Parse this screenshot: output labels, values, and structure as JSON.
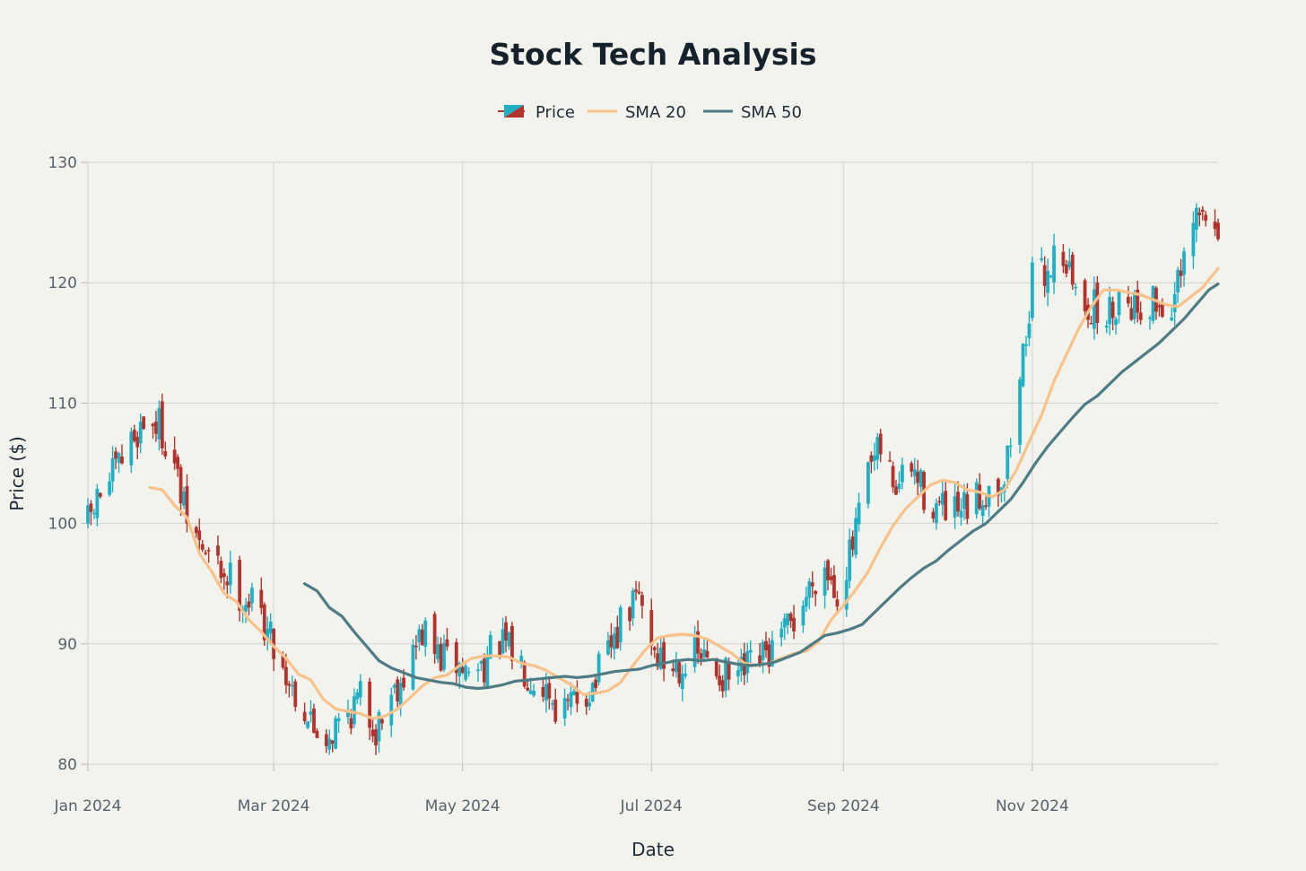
{
  "chart_data": {
    "type": "candlestick",
    "title": "Stock Tech Analysis",
    "xlabel": "Date",
    "ylabel": "Price ($)",
    "ylim": [
      80,
      130
    ],
    "xlim": [
      "2024-01-01",
      "2024-12-31"
    ],
    "grid": true,
    "legend_position": "top-center",
    "x_ticks": [
      {
        "date": "2024-01-01",
        "label": "Jan 2024"
      },
      {
        "date": "2024-03-01",
        "label": "Mar 2024"
      },
      {
        "date": "2024-05-01",
        "label": "May 2024"
      },
      {
        "date": "2024-07-01",
        "label": "Jul 2024"
      },
      {
        "date": "2024-09-01",
        "label": "Sep 2024"
      },
      {
        "date": "2024-11-01",
        "label": "Nov 2024"
      }
    ],
    "y_ticks": [
      80,
      90,
      100,
      110,
      120,
      130
    ],
    "colors": {
      "increasing": "#1fb0c4",
      "decreasing": "#b2332d",
      "sma20": "#f8c28a",
      "sma50": "#4f7b84"
    },
    "legend": [
      {
        "key": "price",
        "label": "Price"
      },
      {
        "key": "sma20",
        "label": "SMA 20"
      },
      {
        "key": "sma50",
        "label": "SMA 50"
      }
    ],
    "price_path": [
      [
        "2024-01-01",
        100.0
      ],
      [
        "2024-01-05",
        102.5
      ],
      [
        "2024-01-10",
        104.2
      ],
      [
        "2024-01-15",
        106.8
      ],
      [
        "2024-01-19",
        108.5
      ],
      [
        "2024-01-24",
        108.2
      ],
      [
        "2024-01-28",
        106.0
      ],
      [
        "2024-02-01",
        101.0
      ],
      [
        "2024-02-06",
        98.2
      ],
      [
        "2024-02-11",
        96.5
      ],
      [
        "2024-02-16",
        95.5
      ],
      [
        "2024-02-20",
        94.0
      ],
      [
        "2024-02-25",
        93.0
      ],
      [
        "2024-03-01",
        90.0
      ],
      [
        "2024-03-05",
        87.5
      ],
      [
        "2024-03-10",
        85.0
      ],
      [
        "2024-03-14",
        83.0
      ],
      [
        "2024-03-19",
        82.5
      ],
      [
        "2024-03-24",
        84.0
      ],
      [
        "2024-03-29",
        85.5
      ],
      [
        "2024-04-03",
        83.0
      ],
      [
        "2024-04-08",
        86.0
      ],
      [
        "2024-04-13",
        88.0
      ],
      [
        "2024-04-18",
        91.0
      ],
      [
        "2024-04-23",
        89.0
      ],
      [
        "2024-04-28",
        88.5
      ],
      [
        "2024-05-03",
        87.5
      ],
      [
        "2024-05-08",
        88.5
      ],
      [
        "2024-05-13",
        90.0
      ],
      [
        "2024-05-18",
        89.0
      ],
      [
        "2024-05-23",
        87.5
      ],
      [
        "2024-05-28",
        86.5
      ],
      [
        "2024-06-02",
        84.0
      ],
      [
        "2024-06-07",
        85.5
      ],
      [
        "2024-06-12",
        86.5
      ],
      [
        "2024-06-17",
        89.0
      ],
      [
        "2024-06-22",
        92.0
      ],
      [
        "2024-06-27",
        94.0
      ],
      [
        "2024-07-02",
        89.5
      ],
      [
        "2024-07-06",
        88.0
      ],
      [
        "2024-07-11",
        88.5
      ],
      [
        "2024-07-16",
        89.0
      ],
      [
        "2024-07-21",
        88.0
      ],
      [
        "2024-07-26",
        87.0
      ],
      [
        "2024-07-31",
        87.5
      ],
      [
        "2024-08-05",
        88.5
      ],
      [
        "2024-08-10",
        89.5
      ],
      [
        "2024-08-15",
        91.5
      ],
      [
        "2024-08-20",
        94.0
      ],
      [
        "2024-08-25",
        97.0
      ],
      [
        "2024-08-30",
        94.5
      ],
      [
        "2024-09-04",
        98.0
      ],
      [
        "2024-09-09",
        104.0
      ],
      [
        "2024-09-13",
        106.0
      ],
      [
        "2024-09-18",
        103.0
      ],
      [
        "2024-09-23",
        104.5
      ],
      [
        "2024-09-28",
        102.0
      ],
      [
        "2024-10-03",
        101.0
      ],
      [
        "2024-10-08",
        100.5
      ],
      [
        "2024-10-13",
        101.5
      ],
      [
        "2024-10-18",
        103.0
      ],
      [
        "2024-10-23",
        104.0
      ],
      [
        "2024-10-27",
        110.0
      ],
      [
        "2024-11-01",
        120.0
      ],
      [
        "2024-11-06",
        121.0
      ],
      [
        "2024-11-10",
        123.5
      ],
      [
        "2024-11-15",
        119.0
      ],
      [
        "2024-11-20",
        118.0
      ],
      [
        "2024-11-25",
        117.0
      ],
      [
        "2024-11-30",
        119.5
      ],
      [
        "2024-12-05",
        118.0
      ],
      [
        "2024-12-10",
        118.5
      ],
      [
        "2024-12-15",
        117.5
      ],
      [
        "2024-12-20",
        121.0
      ],
      [
        "2024-12-24",
        125.5
      ],
      [
        "2024-12-31",
        125.0
      ]
    ],
    "sma20": [
      [
        "2024-01-21",
        103.0
      ],
      [
        "2024-01-25",
        102.8
      ],
      [
        "2024-01-29",
        101.5
      ],
      [
        "2024-02-02",
        100.5
      ],
      [
        "2024-02-06",
        97.5
      ],
      [
        "2024-02-10",
        96.0
      ],
      [
        "2024-02-14",
        94.2
      ],
      [
        "2024-02-18",
        93.5
      ],
      [
        "2024-02-22",
        92.0
      ],
      [
        "2024-02-26",
        91.0
      ],
      [
        "2024-03-01",
        89.8
      ],
      [
        "2024-03-05",
        88.8
      ],
      [
        "2024-03-09",
        87.5
      ],
      [
        "2024-03-13",
        87.0
      ],
      [
        "2024-03-17",
        85.4
      ],
      [
        "2024-03-21",
        84.6
      ],
      [
        "2024-03-25",
        84.4
      ],
      [
        "2024-03-29",
        84.2
      ],
      [
        "2024-04-02",
        83.8
      ],
      [
        "2024-04-06",
        84.0
      ],
      [
        "2024-04-10",
        84.6
      ],
      [
        "2024-04-14",
        85.5
      ],
      [
        "2024-04-18",
        86.5
      ],
      [
        "2024-04-22",
        87.2
      ],
      [
        "2024-04-26",
        87.4
      ],
      [
        "2024-04-30",
        88.2
      ],
      [
        "2024-05-04",
        88.8
      ],
      [
        "2024-05-08",
        89.0
      ],
      [
        "2024-05-12",
        89.0
      ],
      [
        "2024-05-16",
        88.9
      ],
      [
        "2024-05-20",
        88.4
      ],
      [
        "2024-05-24",
        88.2
      ],
      [
        "2024-05-28",
        87.8
      ],
      [
        "2024-06-01",
        87.2
      ],
      [
        "2024-06-05",
        86.6
      ],
      [
        "2024-06-09",
        85.8
      ],
      [
        "2024-06-13",
        85.9
      ],
      [
        "2024-06-17",
        86.1
      ],
      [
        "2024-06-21",
        86.8
      ],
      [
        "2024-06-25",
        88.2
      ],
      [
        "2024-06-29",
        89.5
      ],
      [
        "2024-07-03",
        90.5
      ],
      [
        "2024-07-07",
        90.7
      ],
      [
        "2024-07-11",
        90.8
      ],
      [
        "2024-07-15",
        90.7
      ],
      [
        "2024-07-19",
        90.4
      ],
      [
        "2024-07-23",
        89.8
      ],
      [
        "2024-07-27",
        89.2
      ],
      [
        "2024-07-31",
        88.4
      ],
      [
        "2024-08-04",
        88.2
      ],
      [
        "2024-08-08",
        88.4
      ],
      [
        "2024-08-12",
        88.8
      ],
      [
        "2024-08-16",
        89.2
      ],
      [
        "2024-08-20",
        89.4
      ],
      [
        "2024-08-24",
        90.2
      ],
      [
        "2024-08-28",
        92.0
      ],
      [
        "2024-09-01",
        93.2
      ],
      [
        "2024-09-05",
        94.5
      ],
      [
        "2024-09-09",
        96.0
      ],
      [
        "2024-09-13",
        98.0
      ],
      [
        "2024-09-17",
        99.8
      ],
      [
        "2024-09-21",
        101.2
      ],
      [
        "2024-09-25",
        102.2
      ],
      [
        "2024-09-29",
        103.2
      ],
      [
        "2024-10-03",
        103.6
      ],
      [
        "2024-10-07",
        103.4
      ],
      [
        "2024-10-11",
        102.8
      ],
      [
        "2024-10-15",
        102.6
      ],
      [
        "2024-10-19",
        102.2
      ],
      [
        "2024-10-23",
        102.8
      ],
      [
        "2024-10-27",
        104.5
      ],
      [
        "2024-10-31",
        106.8
      ],
      [
        "2024-11-04",
        109.0
      ],
      [
        "2024-11-08",
        111.8
      ],
      [
        "2024-11-12",
        114.0
      ],
      [
        "2024-11-16",
        116.2
      ],
      [
        "2024-11-20",
        118.0
      ],
      [
        "2024-11-24",
        119.4
      ],
      [
        "2024-11-28",
        119.4
      ],
      [
        "2024-12-02",
        119.2
      ],
      [
        "2024-12-06",
        119.0
      ],
      [
        "2024-12-10",
        118.6
      ],
      [
        "2024-12-14",
        118.2
      ],
      [
        "2024-12-18",
        118.0
      ],
      [
        "2024-12-22",
        118.8
      ],
      [
        "2024-12-26",
        119.6
      ],
      [
        "2024-12-31",
        121.2
      ]
    ],
    "sma50": [
      [
        "2024-03-11",
        95.0
      ],
      [
        "2024-03-15",
        94.4
      ],
      [
        "2024-03-19",
        93.0
      ],
      [
        "2024-03-23",
        92.3
      ],
      [
        "2024-03-27",
        91.0
      ],
      [
        "2024-03-31",
        89.8
      ],
      [
        "2024-04-04",
        88.6
      ],
      [
        "2024-04-08",
        88.0
      ],
      [
        "2024-04-12",
        87.6
      ],
      [
        "2024-04-16",
        87.2
      ],
      [
        "2024-04-20",
        87.0
      ],
      [
        "2024-04-24",
        86.8
      ],
      [
        "2024-04-28",
        86.7
      ],
      [
        "2024-05-02",
        86.4
      ],
      [
        "2024-05-06",
        86.3
      ],
      [
        "2024-05-10",
        86.4
      ],
      [
        "2024-05-14",
        86.6
      ],
      [
        "2024-05-18",
        86.9
      ],
      [
        "2024-05-22",
        87.0
      ],
      [
        "2024-05-26",
        87.1
      ],
      [
        "2024-05-30",
        87.2
      ],
      [
        "2024-06-03",
        87.3
      ],
      [
        "2024-06-07",
        87.2
      ],
      [
        "2024-06-11",
        87.3
      ],
      [
        "2024-06-15",
        87.5
      ],
      [
        "2024-06-19",
        87.7
      ],
      [
        "2024-06-23",
        87.8
      ],
      [
        "2024-06-27",
        87.9
      ],
      [
        "2024-07-01",
        88.2
      ],
      [
        "2024-07-05",
        88.4
      ],
      [
        "2024-07-09",
        88.6
      ],
      [
        "2024-07-13",
        88.7
      ],
      [
        "2024-07-17",
        88.6
      ],
      [
        "2024-07-21",
        88.7
      ],
      [
        "2024-07-25",
        88.5
      ],
      [
        "2024-07-29",
        88.3
      ],
      [
        "2024-08-02",
        88.2
      ],
      [
        "2024-08-06",
        88.3
      ],
      [
        "2024-08-10",
        88.5
      ],
      [
        "2024-08-14",
        88.9
      ],
      [
        "2024-08-18",
        89.3
      ],
      [
        "2024-08-22",
        90.0
      ],
      [
        "2024-08-26",
        90.7
      ],
      [
        "2024-08-30",
        90.9
      ],
      [
        "2024-09-03",
        91.2
      ],
      [
        "2024-09-07",
        91.6
      ],
      [
        "2024-09-11",
        92.6
      ],
      [
        "2024-09-15",
        93.6
      ],
      [
        "2024-09-19",
        94.6
      ],
      [
        "2024-09-23",
        95.5
      ],
      [
        "2024-09-27",
        96.3
      ],
      [
        "2024-10-01",
        96.9
      ],
      [
        "2024-10-05",
        97.8
      ],
      [
        "2024-10-09",
        98.6
      ],
      [
        "2024-10-13",
        99.4
      ],
      [
        "2024-10-17",
        100.0
      ],
      [
        "2024-10-21",
        101.0
      ],
      [
        "2024-10-25",
        102.0
      ],
      [
        "2024-10-29",
        103.4
      ],
      [
        "2024-11-02",
        105.0
      ],
      [
        "2024-11-06",
        106.4
      ],
      [
        "2024-11-10",
        107.6
      ],
      [
        "2024-11-14",
        108.8
      ],
      [
        "2024-11-18",
        109.9
      ],
      [
        "2024-11-22",
        110.6
      ],
      [
        "2024-11-26",
        111.6
      ],
      [
        "2024-11-30",
        112.6
      ],
      [
        "2024-12-04",
        113.4
      ],
      [
        "2024-12-08",
        114.2
      ],
      [
        "2024-12-12",
        115.0
      ],
      [
        "2024-12-16",
        116.0
      ],
      [
        "2024-12-20",
        117.0
      ],
      [
        "2024-12-24",
        118.2
      ],
      [
        "2024-12-28",
        119.4
      ],
      [
        "2024-12-31",
        119.9
      ]
    ]
  }
}
